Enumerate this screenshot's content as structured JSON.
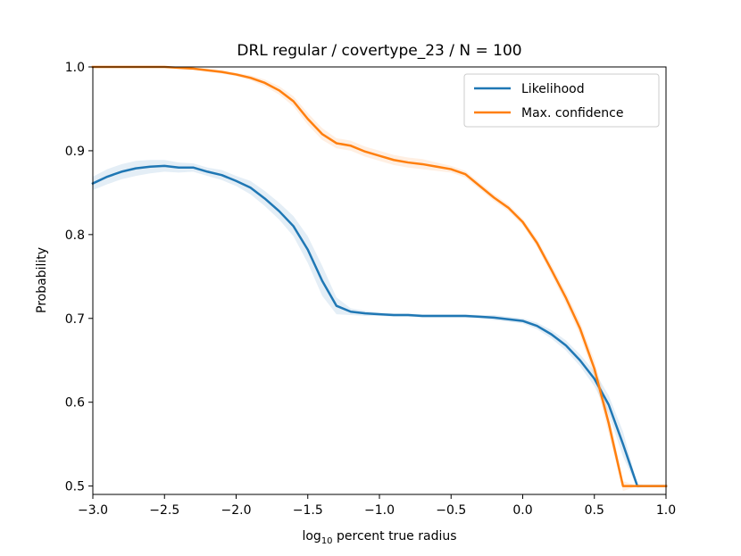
{
  "chart_data": {
    "type": "line",
    "title": "DRL regular / covertype_23 / N = 100",
    "xlabel_main": "log",
    "xlabel_sub": "10",
    "xlabel_rest": " percent true radius",
    "ylabel": "Probability",
    "xlim": [
      -3.0,
      1.0
    ],
    "ylim": [
      0.49,
      1.0
    ],
    "xticks": [
      -3.0,
      -2.5,
      -2.0,
      -1.5,
      -1.0,
      -0.5,
      0.0,
      0.5,
      1.0
    ],
    "xtick_labels": [
      "−3.0",
      "−2.5",
      "−2.0",
      "−1.5",
      "−1.0",
      "−0.5",
      "0.0",
      "0.5",
      "1.0"
    ],
    "yticks": [
      0.5,
      0.6,
      0.7,
      0.8,
      0.9,
      1.0
    ],
    "ytick_labels": [
      "0.5",
      "0.6",
      "0.7",
      "0.8",
      "0.9",
      "1.0"
    ],
    "legend_position": "top-right",
    "x": [
      -3.0,
      -2.9,
      -2.8,
      -2.7,
      -2.6,
      -2.5,
      -2.4,
      -2.3,
      -2.2,
      -2.1,
      -2.0,
      -1.9,
      -1.8,
      -1.7,
      -1.6,
      -1.5,
      -1.4,
      -1.3,
      -1.2,
      -1.1,
      -1.0,
      -0.9,
      -0.8,
      -0.7,
      -0.6,
      -0.5,
      -0.4,
      -0.3,
      -0.2,
      -0.1,
      0.0,
      0.1,
      0.2,
      0.3,
      0.4,
      0.5,
      0.6,
      0.7,
      0.8,
      0.9,
      1.0
    ],
    "series": [
      {
        "name": "Likelihood",
        "color": "#1f77b4",
        "values": [
          0.861,
          0.869,
          0.875,
          0.879,
          0.881,
          0.882,
          0.88,
          0.88,
          0.875,
          0.871,
          0.864,
          0.856,
          0.843,
          0.828,
          0.81,
          0.782,
          0.745,
          0.715,
          0.708,
          0.706,
          0.705,
          0.704,
          0.704,
          0.703,
          0.703,
          0.703,
          0.703,
          0.702,
          0.701,
          0.699,
          0.697,
          0.691,
          0.681,
          0.668,
          0.65,
          0.628,
          0.597,
          0.55,
          0.5,
          0.5,
          0.5
        ],
        "band": [
          0.008,
          0.009,
          0.009,
          0.009,
          0.008,
          0.007,
          0.006,
          0.005,
          0.005,
          0.006,
          0.006,
          0.008,
          0.009,
          0.01,
          0.012,
          0.016,
          0.018,
          0.01,
          0.004,
          0.003,
          0.002,
          0.002,
          0.002,
          0.002,
          0.002,
          0.002,
          0.002,
          0.002,
          0.003,
          0.003,
          0.003,
          0.004,
          0.005,
          0.006,
          0.007,
          0.009,
          0.011,
          0.015,
          0.002,
          0.0,
          0.0
        ]
      },
      {
        "name": "Max. confidence",
        "color": "#ff7f0e",
        "values": [
          1.0,
          1.0,
          1.0,
          1.0,
          1.0,
          1.0,
          0.999,
          0.998,
          0.996,
          0.994,
          0.991,
          0.987,
          0.981,
          0.972,
          0.959,
          0.938,
          0.92,
          0.909,
          0.906,
          0.899,
          0.894,
          0.889,
          0.886,
          0.884,
          0.881,
          0.878,
          0.872,
          0.858,
          0.844,
          0.832,
          0.815,
          0.79,
          0.758,
          0.725,
          0.688,
          0.64,
          0.575,
          0.5,
          0.5,
          0.5,
          0.5
        ],
        "band": [
          0.0,
          0.0,
          0.0,
          0.0,
          0.0,
          0.0,
          0.001,
          0.001,
          0.002,
          0.002,
          0.002,
          0.003,
          0.004,
          0.005,
          0.006,
          0.007,
          0.007,
          0.006,
          0.006,
          0.006,
          0.006,
          0.006,
          0.006,
          0.006,
          0.005,
          0.004,
          0.004,
          0.004,
          0.004,
          0.004,
          0.004,
          0.005,
          0.006,
          0.007,
          0.008,
          0.01,
          0.012,
          0.006,
          0.0,
          0.0,
          0.0
        ]
      }
    ]
  }
}
